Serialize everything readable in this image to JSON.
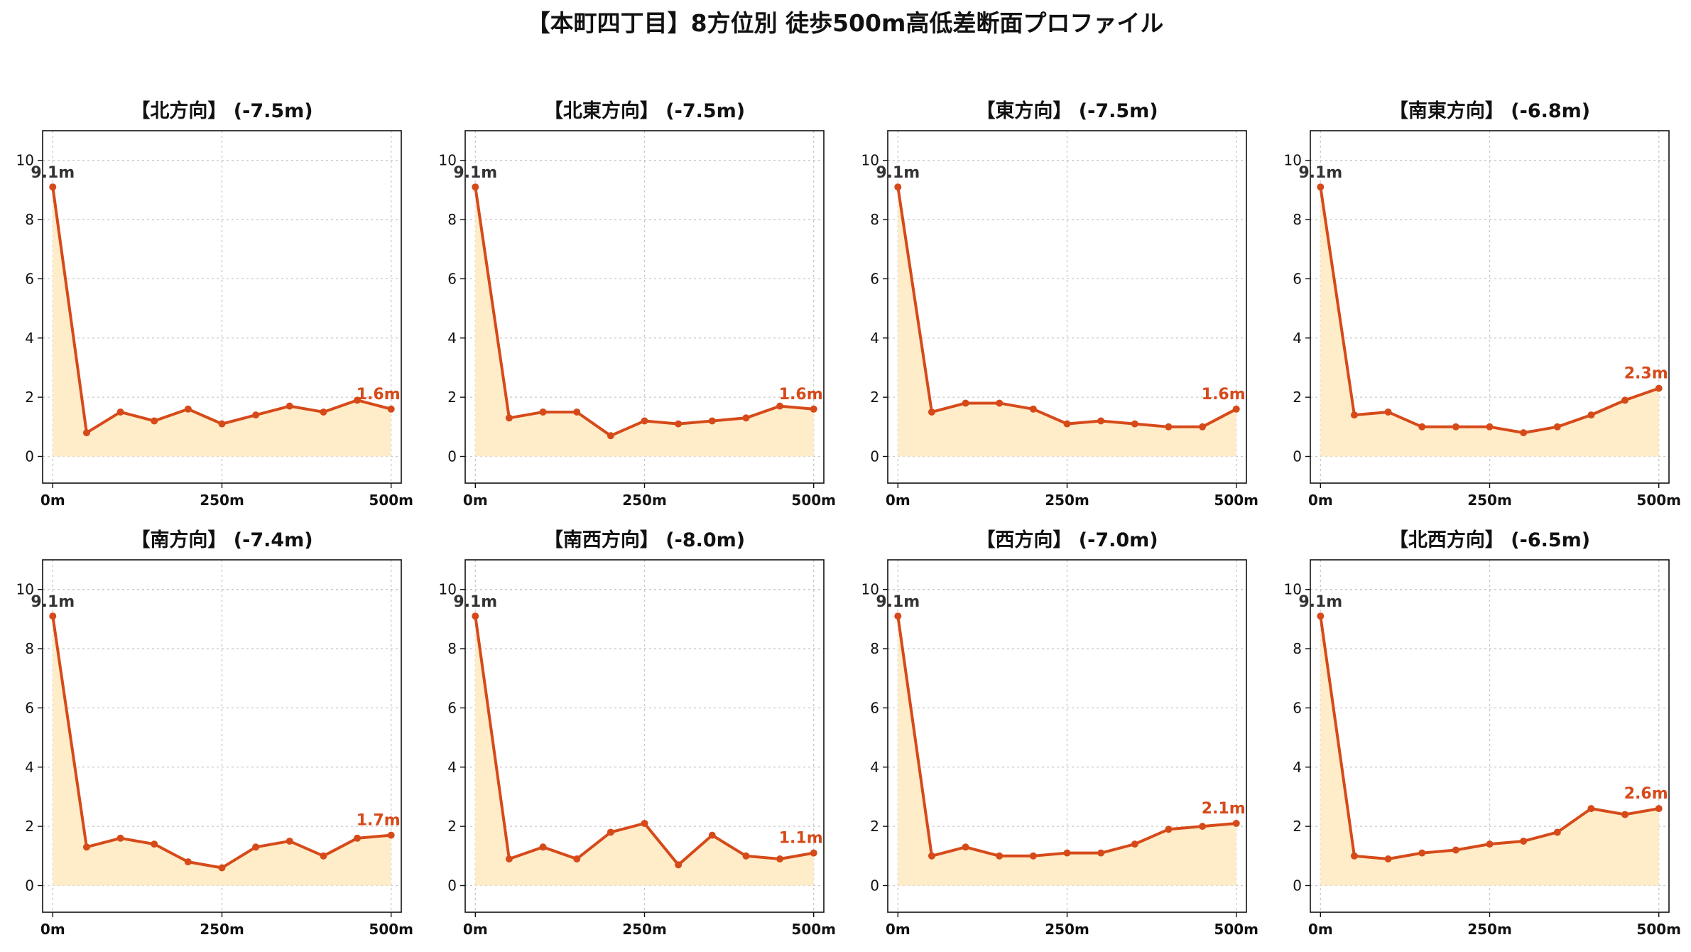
{
  "title": "【本町四丁目】8方位別 徒歩500m高低差断面プロファイル",
  "colors": {
    "line": "#d64a1a",
    "fill": "#ffecc8",
    "start_label": "#333333",
    "end_label": "#d64a1a"
  },
  "chart_data": [
    {
      "type": "area",
      "title": "【北方向】 (-7.5m)",
      "x": [
        0,
        50,
        100,
        150,
        200,
        250,
        300,
        350,
        400,
        450,
        500
      ],
      "y": [
        9.1,
        0.8,
        1.5,
        1.2,
        1.6,
        1.1,
        1.4,
        1.7,
        1.5,
        1.9,
        1.6
      ],
      "start_label": "9.1m",
      "end_label": "1.6m",
      "xticks": [
        "0m",
        "250m",
        "500m"
      ],
      "yticks": [
        "0",
        "2",
        "4",
        "6",
        "8",
        "10"
      ],
      "xlim": [
        0,
        500
      ],
      "ylim": [
        -0.9,
        11
      ],
      "grid": true
    },
    {
      "type": "area",
      "title": "【北東方向】 (-7.5m)",
      "x": [
        0,
        50,
        100,
        150,
        200,
        250,
        300,
        350,
        400,
        450,
        500
      ],
      "y": [
        9.1,
        1.3,
        1.5,
        1.5,
        0.7,
        1.2,
        1.1,
        1.2,
        1.3,
        1.7,
        1.6
      ],
      "start_label": "9.1m",
      "end_label": "1.6m",
      "xticks": [
        "0m",
        "250m",
        "500m"
      ],
      "yticks": [
        "0",
        "2",
        "4",
        "6",
        "8",
        "10"
      ],
      "xlim": [
        0,
        500
      ],
      "ylim": [
        -0.9,
        11
      ],
      "grid": true
    },
    {
      "type": "area",
      "title": "【東方向】 (-7.5m)",
      "x": [
        0,
        50,
        100,
        150,
        200,
        250,
        300,
        350,
        400,
        450,
        500
      ],
      "y": [
        9.1,
        1.5,
        1.8,
        1.8,
        1.6,
        1.1,
        1.2,
        1.1,
        1.0,
        1.0,
        1.6
      ],
      "start_label": "9.1m",
      "end_label": "1.6m",
      "xticks": [
        "0m",
        "250m",
        "500m"
      ],
      "yticks": [
        "0",
        "2",
        "4",
        "6",
        "8",
        "10"
      ],
      "xlim": [
        0,
        500
      ],
      "ylim": [
        -0.9,
        11
      ],
      "grid": true
    },
    {
      "type": "area",
      "title": "【南東方向】 (-6.8m)",
      "x": [
        0,
        50,
        100,
        150,
        200,
        250,
        300,
        350,
        400,
        450,
        500
      ],
      "y": [
        9.1,
        1.4,
        1.5,
        1.0,
        1.0,
        1.0,
        0.8,
        1.0,
        1.4,
        1.9,
        2.3
      ],
      "start_label": "9.1m",
      "end_label": "2.3m",
      "xticks": [
        "0m",
        "250m",
        "500m"
      ],
      "yticks": [
        "0",
        "2",
        "4",
        "6",
        "8",
        "10"
      ],
      "xlim": [
        0,
        500
      ],
      "ylim": [
        -0.9,
        11
      ],
      "grid": true
    },
    {
      "type": "area",
      "title": "【南方向】 (-7.4m)",
      "x": [
        0,
        50,
        100,
        150,
        200,
        250,
        300,
        350,
        400,
        450,
        500
      ],
      "y": [
        9.1,
        1.3,
        1.6,
        1.4,
        0.8,
        0.6,
        1.3,
        1.5,
        1.0,
        1.6,
        1.7
      ],
      "start_label": "9.1m",
      "end_label": "1.7m",
      "xticks": [
        "0m",
        "250m",
        "500m"
      ],
      "yticks": [
        "0",
        "2",
        "4",
        "6",
        "8",
        "10"
      ],
      "xlim": [
        0,
        500
      ],
      "ylim": [
        -0.9,
        11
      ],
      "grid": true
    },
    {
      "type": "area",
      "title": "【南西方向】 (-8.0m)",
      "x": [
        0,
        50,
        100,
        150,
        200,
        250,
        300,
        350,
        400,
        450,
        500
      ],
      "y": [
        9.1,
        0.9,
        1.3,
        0.9,
        1.8,
        2.1,
        0.7,
        1.7,
        1.0,
        0.9,
        1.1
      ],
      "start_label": "9.1m",
      "end_label": "1.1m",
      "xticks": [
        "0m",
        "250m",
        "500m"
      ],
      "yticks": [
        "0",
        "2",
        "4",
        "6",
        "8",
        "10"
      ],
      "xlim": [
        0,
        500
      ],
      "ylim": [
        -0.9,
        11
      ],
      "grid": true
    },
    {
      "type": "area",
      "title": "【西方向】 (-7.0m)",
      "x": [
        0,
        50,
        100,
        150,
        200,
        250,
        300,
        350,
        400,
        450,
        500
      ],
      "y": [
        9.1,
        1.0,
        1.3,
        1.0,
        1.0,
        1.1,
        1.1,
        1.4,
        1.9,
        2.0,
        2.1
      ],
      "start_label": "9.1m",
      "end_label": "2.1m",
      "xticks": [
        "0m",
        "250m",
        "500m"
      ],
      "yticks": [
        "0",
        "2",
        "4",
        "6",
        "8",
        "10"
      ],
      "xlim": [
        0,
        500
      ],
      "ylim": [
        -0.9,
        11
      ],
      "grid": true
    },
    {
      "type": "area",
      "title": "【北西方向】 (-6.5m)",
      "x": [
        0,
        50,
        100,
        150,
        200,
        250,
        300,
        350,
        400,
        450,
        500
      ],
      "y": [
        9.1,
        1.0,
        0.9,
        1.1,
        1.2,
        1.4,
        1.5,
        1.8,
        2.6,
        2.4,
        2.6
      ],
      "start_label": "9.1m",
      "end_label": "2.6m",
      "xticks": [
        "0m",
        "250m",
        "500m"
      ],
      "yticks": [
        "0",
        "2",
        "4",
        "6",
        "8",
        "10"
      ],
      "xlim": [
        0,
        500
      ],
      "ylim": [
        -0.9,
        11
      ],
      "grid": true
    }
  ]
}
